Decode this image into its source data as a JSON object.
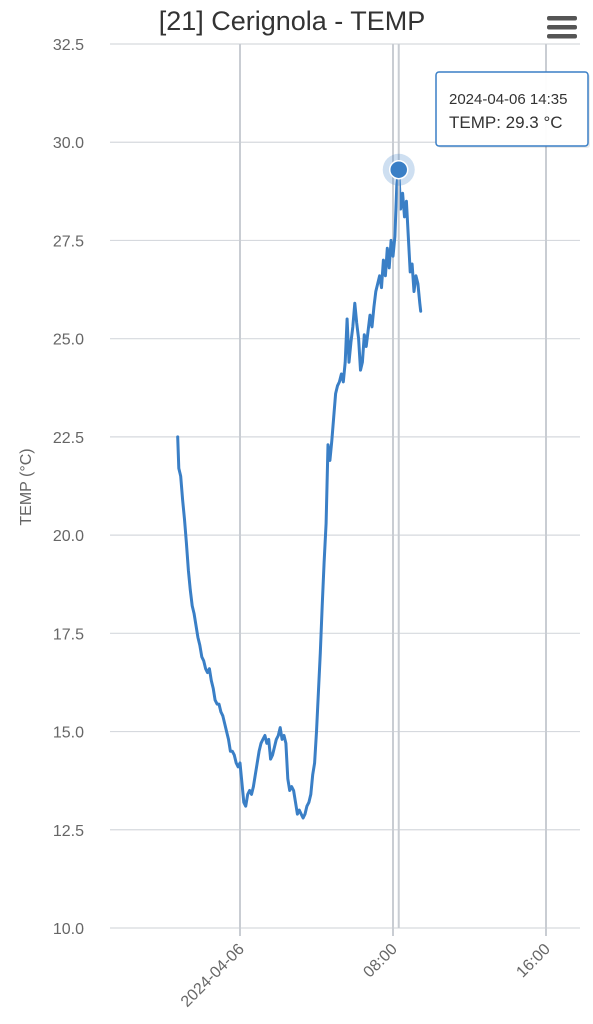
{
  "chart_data": {
    "type": "line",
    "title": "[21] Cerignola - TEMP",
    "xlabel": "",
    "ylabel": "TEMP (°C)",
    "ylim": [
      10.0,
      32.5
    ],
    "y_ticks": [
      "10.0",
      "12.5",
      "15.0",
      "17.5",
      "20.0",
      "22.5",
      "25.0",
      "27.5",
      "30.0",
      "32.5"
    ],
    "x_range_hours": [
      -3.3,
      16.2
    ],
    "x_ticks": [
      {
        "label": "2024-04-06",
        "hour": 0
      },
      {
        "label": "08:00",
        "hour": 8
      },
      {
        "label": "16:00",
        "hour": 16
      }
    ],
    "grid": true,
    "legend": "none",
    "series": [
      {
        "color": "#3a7fc6",
        "points": [
          [
            -3.26,
            22.5
          ],
          [
            -3.2,
            21.7
          ],
          [
            -3.1,
            21.5
          ],
          [
            -3.0,
            20.9
          ],
          [
            -2.9,
            20.4
          ],
          [
            -2.8,
            19.8
          ],
          [
            -2.7,
            19.1
          ],
          [
            -2.6,
            18.6
          ],
          [
            -2.5,
            18.2
          ],
          [
            -2.4,
            18.0
          ],
          [
            -2.3,
            17.7
          ],
          [
            -2.2,
            17.4
          ],
          [
            -2.1,
            17.2
          ],
          [
            -2.0,
            16.9
          ],
          [
            -1.9,
            16.8
          ],
          [
            -1.8,
            16.6
          ],
          [
            -1.7,
            16.5
          ],
          [
            -1.6,
            16.6
          ],
          [
            -1.5,
            16.3
          ],
          [
            -1.4,
            16.1
          ],
          [
            -1.3,
            15.8
          ],
          [
            -1.2,
            15.7
          ],
          [
            -1.1,
            15.7
          ],
          [
            -1.0,
            15.5
          ],
          [
            -0.9,
            15.4
          ],
          [
            -0.8,
            15.2
          ],
          [
            -0.7,
            15.0
          ],
          [
            -0.6,
            14.8
          ],
          [
            -0.5,
            14.5
          ],
          [
            -0.4,
            14.5
          ],
          [
            -0.3,
            14.4
          ],
          [
            -0.2,
            14.2
          ],
          [
            -0.1,
            14.1
          ],
          [
            0.0,
            14.2
          ],
          [
            0.1,
            13.7
          ],
          [
            0.2,
            13.2
          ],
          [
            0.3,
            13.1
          ],
          [
            0.4,
            13.4
          ],
          [
            0.5,
            13.5
          ],
          [
            0.6,
            13.4
          ],
          [
            0.7,
            13.6
          ],
          [
            0.8,
            13.9
          ],
          [
            0.9,
            14.2
          ],
          [
            1.0,
            14.5
          ],
          [
            1.1,
            14.7
          ],
          [
            1.2,
            14.8
          ],
          [
            1.3,
            14.9
          ],
          [
            1.4,
            14.7
          ],
          [
            1.5,
            14.8
          ],
          [
            1.6,
            14.3
          ],
          [
            1.7,
            14.4
          ],
          [
            1.8,
            14.6
          ],
          [
            1.9,
            14.8
          ],
          [
            2.0,
            14.9
          ],
          [
            2.1,
            15.1
          ],
          [
            2.2,
            14.8
          ],
          [
            2.3,
            14.9
          ],
          [
            2.4,
            14.7
          ],
          [
            2.5,
            13.8
          ],
          [
            2.6,
            13.5
          ],
          [
            2.7,
            13.6
          ],
          [
            2.8,
            13.5
          ],
          [
            2.9,
            13.2
          ],
          [
            3.0,
            12.9
          ],
          [
            3.1,
            13.0
          ],
          [
            3.2,
            12.9
          ],
          [
            3.3,
            12.8
          ],
          [
            3.4,
            12.9
          ],
          [
            3.5,
            13.1
          ],
          [
            3.6,
            13.2
          ],
          [
            3.7,
            13.4
          ],
          [
            3.8,
            13.9
          ],
          [
            3.9,
            14.2
          ],
          [
            4.0,
            15.0
          ],
          [
            4.1,
            16.0
          ],
          [
            4.2,
            17.0
          ],
          [
            4.3,
            18.2
          ],
          [
            4.4,
            19.3
          ],
          [
            4.5,
            20.3
          ],
          [
            4.6,
            22.3
          ],
          [
            4.7,
            21.9
          ],
          [
            4.8,
            22.4
          ],
          [
            4.9,
            23.0
          ],
          [
            5.0,
            23.6
          ],
          [
            5.1,
            23.8
          ],
          [
            5.2,
            23.9
          ],
          [
            5.3,
            24.1
          ],
          [
            5.4,
            23.9
          ],
          [
            5.5,
            24.4
          ],
          [
            5.6,
            25.5
          ],
          [
            5.7,
            24.4
          ],
          [
            5.8,
            24.9
          ],
          [
            5.9,
            25.3
          ],
          [
            6.0,
            25.9
          ],
          [
            6.1,
            25.4
          ],
          [
            6.2,
            25.0
          ],
          [
            6.3,
            24.2
          ],
          [
            6.4,
            24.4
          ],
          [
            6.5,
            25.1
          ],
          [
            6.6,
            24.8
          ],
          [
            6.7,
            25.2
          ],
          [
            6.8,
            25.6
          ],
          [
            6.9,
            25.3
          ],
          [
            7.0,
            25.8
          ],
          [
            7.1,
            26.2
          ],
          [
            7.2,
            26.4
          ],
          [
            7.3,
            26.6
          ],
          [
            7.4,
            26.3
          ],
          [
            7.5,
            27.0
          ],
          [
            7.6,
            26.6
          ],
          [
            7.7,
            27.3
          ],
          [
            7.8,
            26.8
          ],
          [
            7.9,
            27.5
          ],
          [
            8.0,
            27.1
          ],
          [
            8.1,
            27.6
          ],
          [
            8.2,
            28.9
          ],
          [
            8.3,
            29.3
          ],
          [
            8.4,
            28.3
          ],
          [
            8.5,
            28.7
          ],
          [
            8.6,
            28.1
          ],
          [
            8.7,
            28.5
          ],
          [
            8.8,
            27.6
          ],
          [
            8.9,
            26.7
          ],
          [
            9.0,
            26.9
          ],
          [
            9.1,
            26.2
          ],
          [
            9.2,
            26.6
          ],
          [
            9.3,
            26.4
          ],
          [
            9.4,
            25.9
          ],
          [
            9.45,
            25.7
          ]
        ]
      }
    ],
    "tooltip": {
      "date": "2024-04-06 14:35",
      "value_text": "TEMP: 29.3 °C"
    }
  },
  "icons": {
    "menu": "hamburger-menu-icon"
  }
}
